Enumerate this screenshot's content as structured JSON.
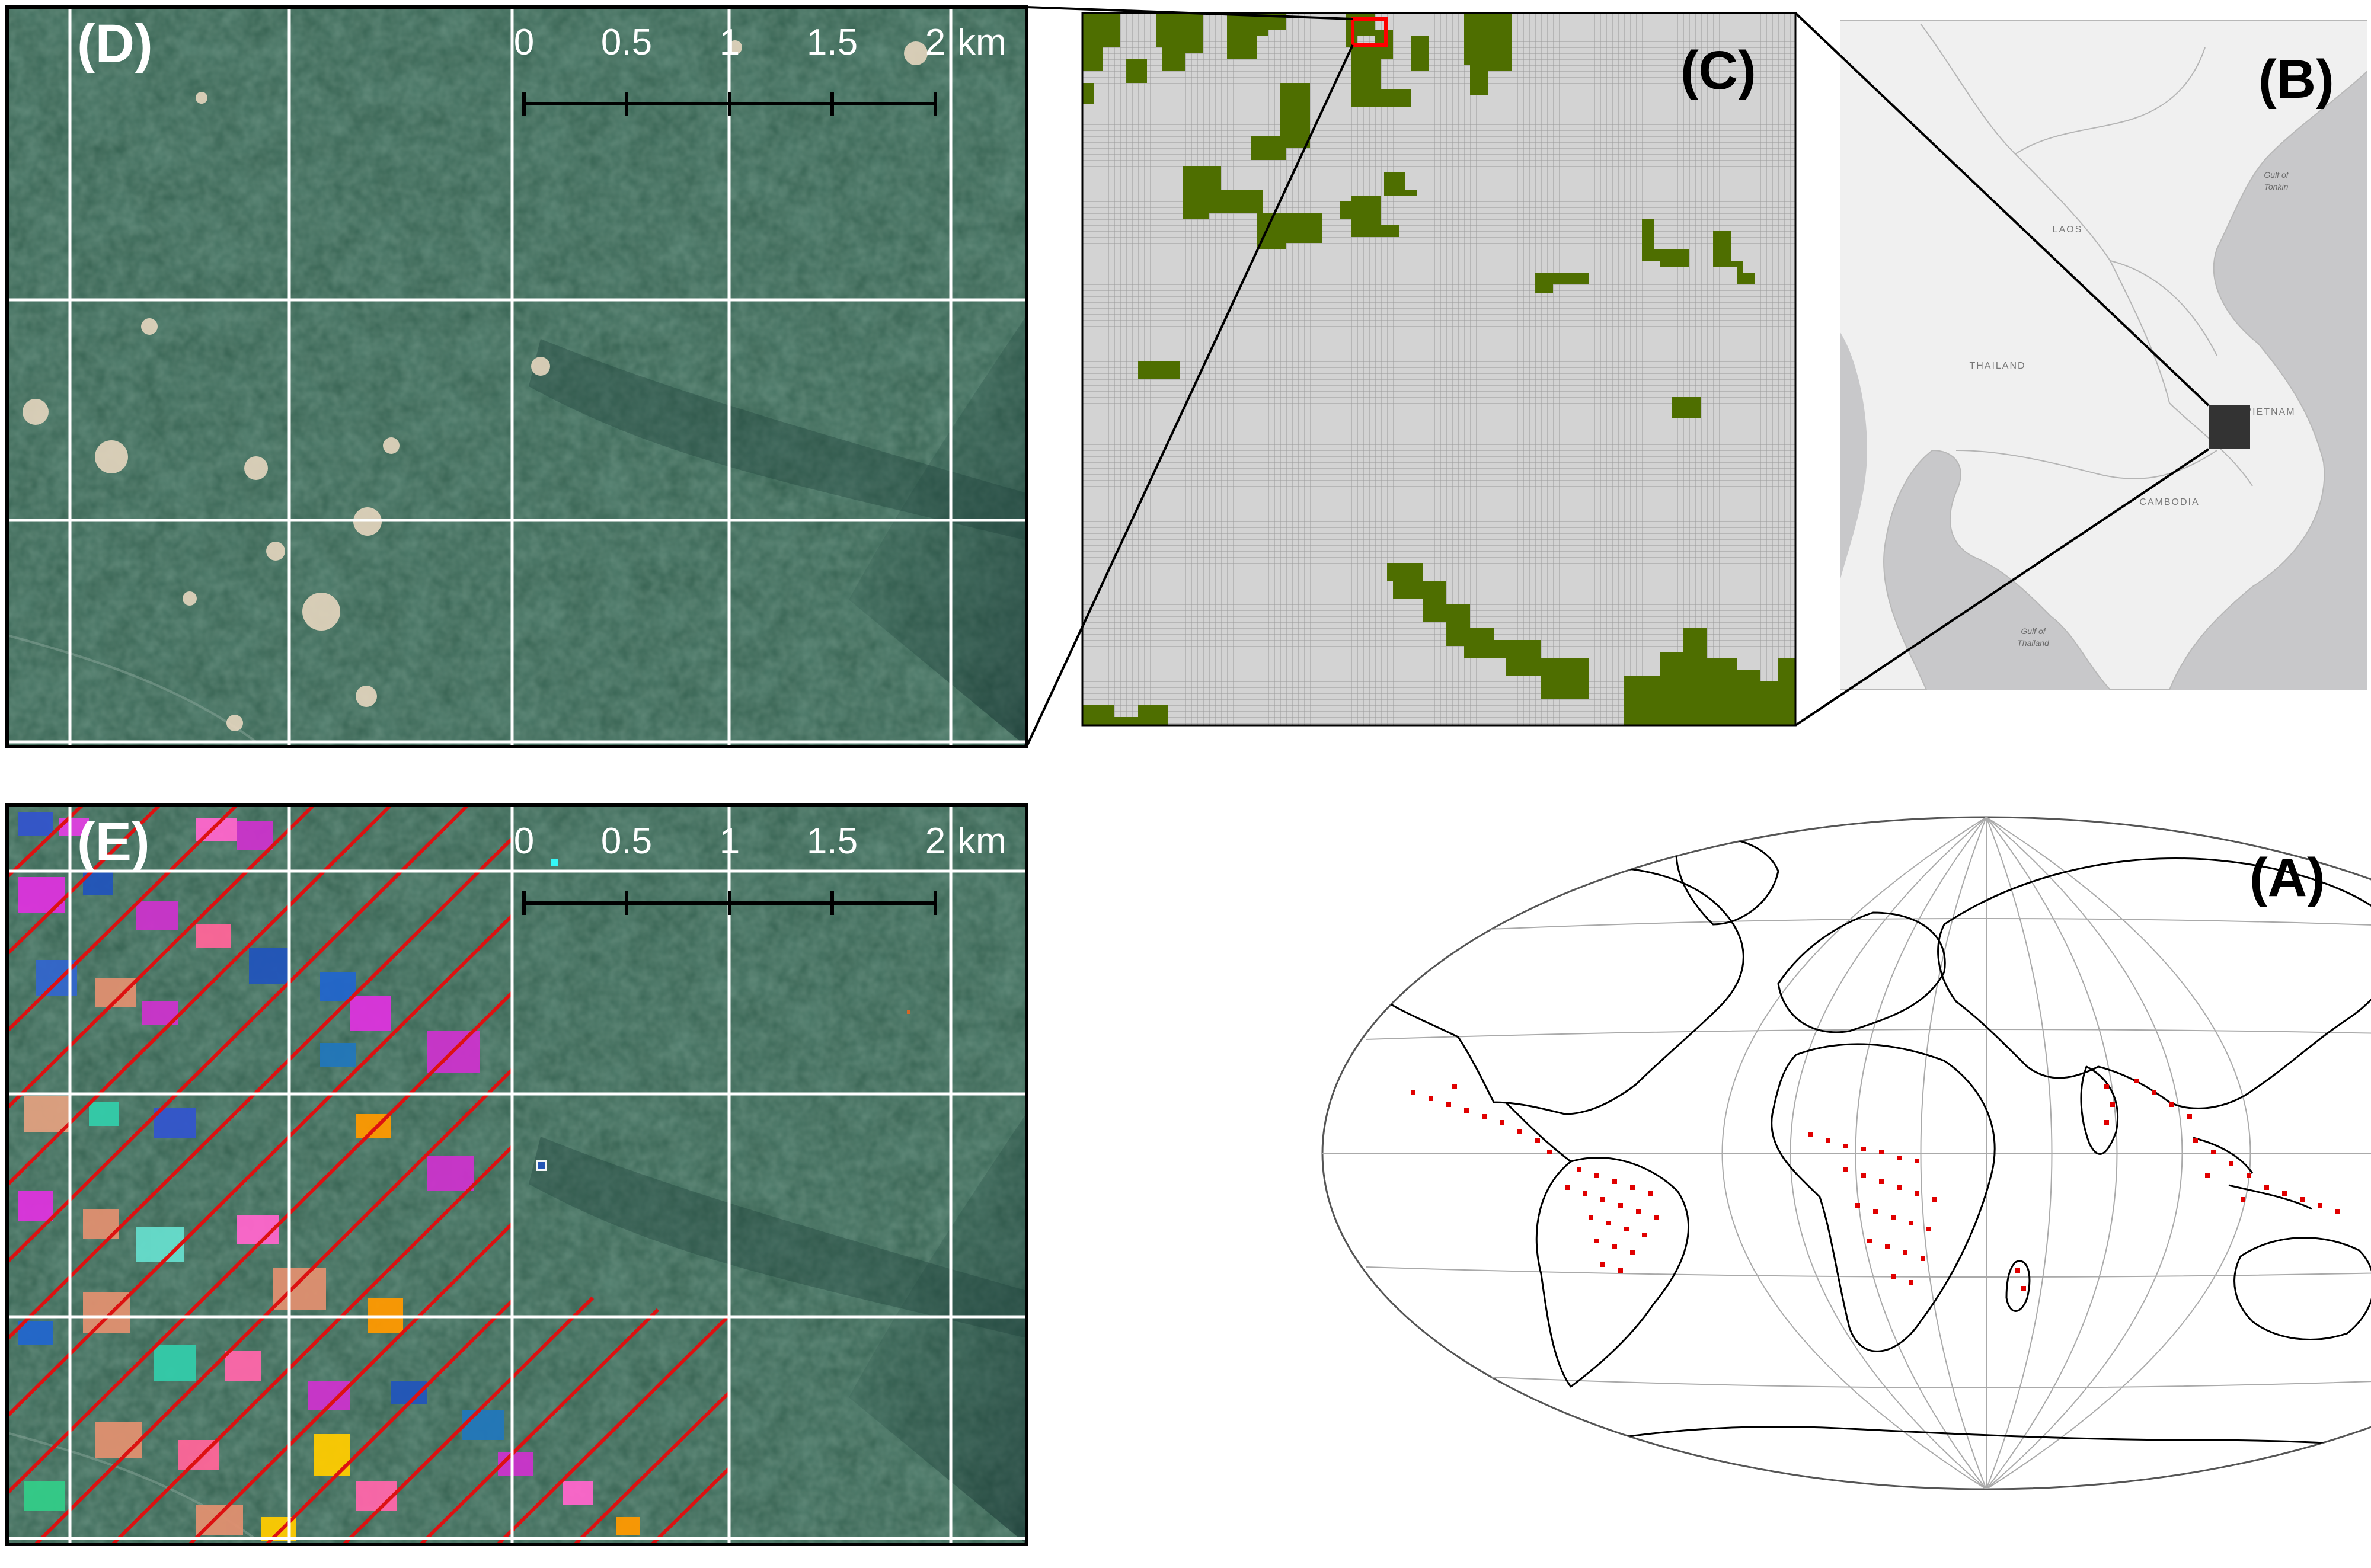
{
  "panels": {
    "A": {
      "letter": "(A)"
    },
    "B": {
      "letter": "(B)",
      "country_labels": [
        "LAOS",
        "THAILAND",
        "VIETNAM",
        "CAMBODIA"
      ],
      "water_labels": [
        "Gulf of",
        "Tonkin",
        "Gulf of",
        "Thailand"
      ]
    },
    "C": {
      "letter": "(C)"
    },
    "D": {
      "letter": "(D)"
    },
    "E": {
      "letter": "(E)"
    }
  },
  "scale_bar": {
    "ticks": [
      "0",
      "0.5",
      "1",
      "1.5",
      "2"
    ],
    "unit": "km"
  },
  "colors": {
    "forest_grid_cell": "#4e6e00",
    "grid_background": "#d3d3d3",
    "occurrence_point": "#e00000",
    "selection_box": "#ff0000",
    "hatch_line": "#dd1111",
    "satellite_base": "#2f5b4a",
    "map_land": "#f0f0f0",
    "map_water": "#c8c8ca",
    "study_area_marker": "#333333"
  },
  "icons": {
    "study_area_marker": "filled-square",
    "selection_box": "red-outline-square"
  }
}
